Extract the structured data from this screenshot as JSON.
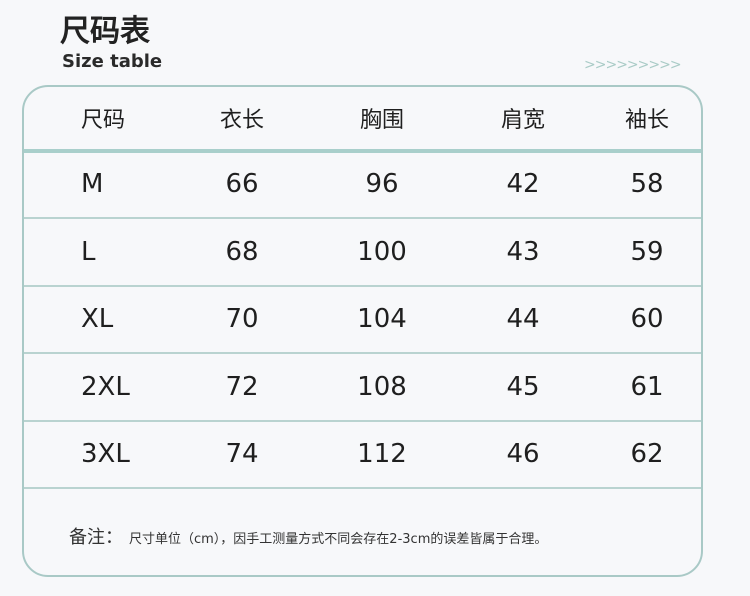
{
  "header": {
    "title": "尺码表",
    "subtitle": "Size table",
    "arrows": ">>>>>>>>>"
  },
  "table": {
    "columns": [
      "尺码",
      "衣长",
      "胸围",
      "肩宽",
      "袖长"
    ],
    "rows": [
      [
        "M",
        "66",
        "96",
        "42",
        "58"
      ],
      [
        "L",
        "68",
        "100",
        "43",
        "59"
      ],
      [
        "XL",
        "70",
        "104",
        "44",
        "60"
      ],
      [
        "2XL",
        "72",
        "108",
        "45",
        "61"
      ],
      [
        "3XL",
        "74",
        "112",
        "46",
        "62"
      ]
    ]
  },
  "note": {
    "label": "备注：",
    "text": "尺寸单位（cm），因手工测量方式不同会存在2-3cm的误差皆属于合理。"
  },
  "colors": {
    "border": "#a9c9c6",
    "accent": "#a9cbc6"
  }
}
